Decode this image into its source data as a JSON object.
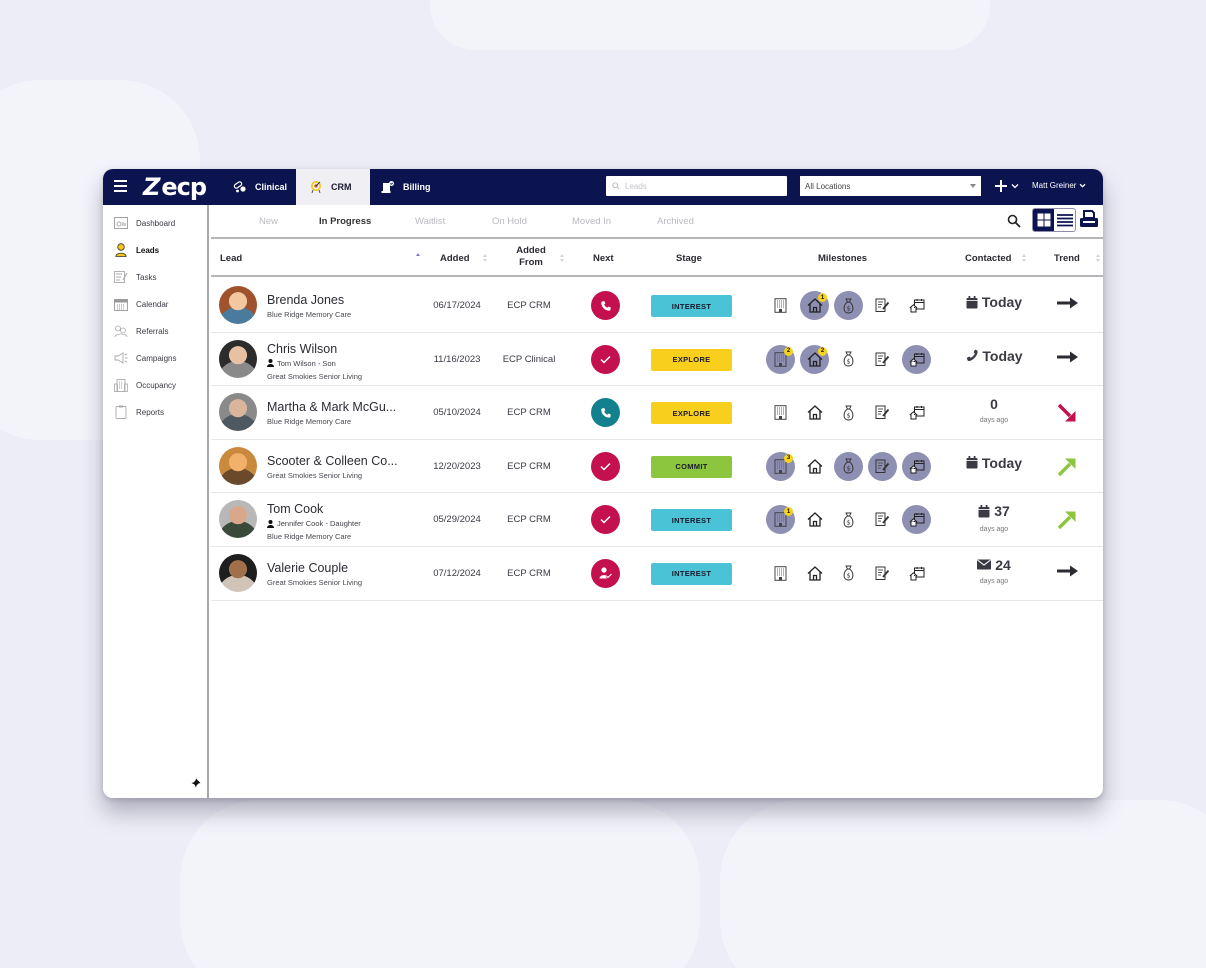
{
  "topbar": {
    "logo": "ecp",
    "nav_tabs": [
      {
        "label": "Clinical",
        "icon": "pills-icon",
        "active": false
      },
      {
        "label": "CRM",
        "icon": "target-award-icon",
        "active": true
      },
      {
        "label": "Billing",
        "icon": "billing-icon",
        "active": false
      }
    ],
    "search_placeholder": "Leads",
    "location_select": "All Locations",
    "user_name": "Matt Greiner"
  },
  "sidebar": {
    "items": [
      {
        "label": "Dashboard",
        "icon": "dashboard-icon",
        "active": false
      },
      {
        "label": "Leads",
        "icon": "person-icon",
        "active": true
      },
      {
        "label": "Tasks",
        "icon": "tasks-icon",
        "active": false
      },
      {
        "label": "Calendar",
        "icon": "calendar-icon",
        "active": false
      },
      {
        "label": "Referrals",
        "icon": "referrals-icon",
        "active": false
      },
      {
        "label": "Campaigns",
        "icon": "megaphone-icon",
        "active": false
      },
      {
        "label": "Occupancy",
        "icon": "building-icon",
        "active": false
      },
      {
        "label": "Reports",
        "icon": "clipboard-icon",
        "active": false
      }
    ]
  },
  "status_tabs": [
    {
      "label": "New",
      "active": false
    },
    {
      "label": "In Progress",
      "active": true
    },
    {
      "label": "Waitlist",
      "active": false
    },
    {
      "label": "On Hold",
      "active": false
    },
    {
      "label": "Moved In",
      "active": false
    },
    {
      "label": "Archived",
      "active": false
    }
  ],
  "table": {
    "columns": {
      "lead": "Lead",
      "added": "Added",
      "added_from_1": "Added",
      "added_from_2": "From",
      "next": "Next",
      "stage": "Stage",
      "milestones": "Milestones",
      "contacted": "Contacted",
      "trend": "Trend"
    },
    "rows": [
      {
        "name": "Brenda Jones",
        "contact": "",
        "location": "Blue Ridge Memory Care",
        "added": "06/17/2024",
        "added_from": "ECP CRM",
        "next": "phone",
        "next_color": "#c4104f",
        "stage": "INTEREST",
        "stage_color": "#4ac3d6",
        "milestones": [
          {
            "on": false,
            "badge": ""
          },
          {
            "on": true,
            "badge": "1"
          },
          {
            "on": true,
            "badge": ""
          },
          {
            "on": false,
            "badge": ""
          },
          {
            "on": false,
            "badge": ""
          }
        ],
        "contacted_icon": "calendar",
        "contacted_value": "Today",
        "contacted_sub": "",
        "trend": "flat"
      },
      {
        "name": "Chris Wilson",
        "contact": "Tom Wilson - Son",
        "location": "Great Smokies Senior Living",
        "added": "11/16/2023",
        "added_from": "ECP Clinical",
        "next": "check",
        "next_color": "#c4104f",
        "stage": "EXPLORE",
        "stage_color": "#f9cf1d",
        "milestones": [
          {
            "on": true,
            "badge": "2"
          },
          {
            "on": true,
            "badge": "2"
          },
          {
            "on": false,
            "badge": ""
          },
          {
            "on": false,
            "badge": ""
          },
          {
            "on": true,
            "badge": ""
          }
        ],
        "contacted_icon": "phone",
        "contacted_value": "Today",
        "contacted_sub": "",
        "trend": "flat"
      },
      {
        "name": "Martha & Mark McGu...",
        "contact": "",
        "location": "Blue Ridge Memory Care",
        "added": "05/10/2024",
        "added_from": "ECP CRM",
        "next": "phone",
        "next_color": "#13808e",
        "stage": "EXPLORE",
        "stage_color": "#f9cf1d",
        "milestones": [
          {
            "on": false,
            "badge": ""
          },
          {
            "on": false,
            "badge": ""
          },
          {
            "on": false,
            "badge": ""
          },
          {
            "on": false,
            "badge": ""
          },
          {
            "on": false,
            "badge": ""
          }
        ],
        "contacted_icon": "",
        "contacted_value": "0",
        "contacted_sub": "days ago",
        "trend": "down"
      },
      {
        "name": "Scooter & Colleen Co...",
        "contact": "",
        "location": "Great Smokies Senior Living",
        "added": "12/20/2023",
        "added_from": "ECP CRM",
        "next": "check",
        "next_color": "#c4104f",
        "stage": "COMMIT",
        "stage_color": "#8cc63f",
        "milestones": [
          {
            "on": true,
            "badge": "3"
          },
          {
            "on": false,
            "badge": ""
          },
          {
            "on": true,
            "badge": ""
          },
          {
            "on": true,
            "badge": ""
          },
          {
            "on": true,
            "badge": ""
          }
        ],
        "contacted_icon": "calendar",
        "contacted_value": "Today",
        "contacted_sub": "",
        "trend": "up"
      },
      {
        "name": "Tom Cook",
        "contact": "Jennifer Cook - Daughter",
        "location": "Blue Ridge Memory Care",
        "added": "05/29/2024",
        "added_from": "ECP CRM",
        "next": "check",
        "next_color": "#c4104f",
        "stage": "INTEREST",
        "stage_color": "#4ac3d6",
        "milestones": [
          {
            "on": true,
            "badge": "1"
          },
          {
            "on": false,
            "badge": ""
          },
          {
            "on": false,
            "badge": ""
          },
          {
            "on": false,
            "badge": ""
          },
          {
            "on": true,
            "badge": ""
          }
        ],
        "contacted_icon": "calendar",
        "contacted_value": "37",
        "contacted_sub": "days ago",
        "trend": "up"
      },
      {
        "name": "Valerie Couple",
        "contact": "",
        "location": "Great Smokies Senior Living",
        "added": "07/12/2024",
        "added_from": "ECP CRM",
        "next": "user-check",
        "next_color": "#c4104f",
        "stage": "INTEREST",
        "stage_color": "#4ac3d6",
        "milestones": [
          {
            "on": false,
            "badge": ""
          },
          {
            "on": false,
            "badge": ""
          },
          {
            "on": false,
            "badge": ""
          },
          {
            "on": false,
            "badge": ""
          },
          {
            "on": false,
            "badge": ""
          }
        ],
        "contacted_icon": "envelope",
        "contacted_value": "24",
        "contacted_sub": "days ago",
        "trend": "flat"
      }
    ]
  },
  "colors": {
    "navy": "#0c1450",
    "milestone_active": "#8d8fb3",
    "badge": "#f7d21c",
    "trend_up": "#8cc63f",
    "trend_down": "#c4104f",
    "trend_flat": "#2b2b33"
  }
}
